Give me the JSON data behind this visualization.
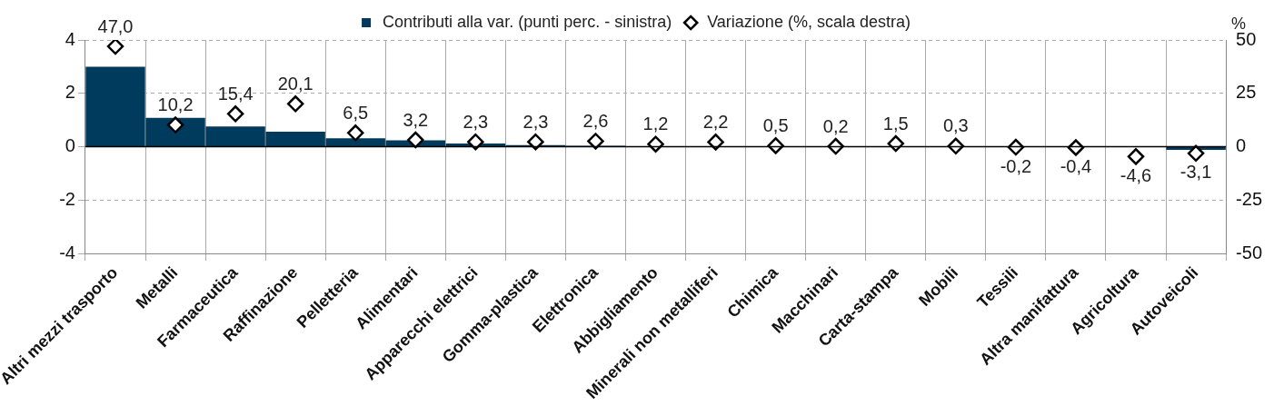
{
  "chart_data": {
    "type": "bar",
    "categories": [
      "Altri mezzi trasporto",
      "Metalli",
      "Farmaceutica",
      "Raffinazione",
      "Pelletteria",
      "Alimentari",
      "Apparecchi elettrici",
      "Gomma-plastica",
      "Elettronica",
      "Abbigliamento",
      "Minerali non metalliferi",
      "Chimica",
      "Macchinari",
      "Carta-stampa",
      "Mobili",
      "Tessili",
      "Altra manifattura",
      "Agricoltura",
      "Autoveicoli"
    ],
    "series": [
      {
        "name": "Contributi alla var. (punti perc. - sinistra)",
        "color": "#003a5c",
        "values": [
          3.0,
          1.08,
          0.76,
          0.56,
          0.32,
          0.24,
          0.12,
          0.06,
          0.04,
          0.02,
          0.02,
          0.01,
          0.0,
          0.01,
          0.0,
          0.0,
          0.0,
          null,
          -0.12
        ]
      },
      {
        "name": "Variazione (%, scala destra)",
        "type": "scatter",
        "axis": "y2",
        "color": "#000000",
        "marker": "diamond",
        "values": [
          47.0,
          10.2,
          15.4,
          20.1,
          6.5,
          3.2,
          2.3,
          2.3,
          2.6,
          1.2,
          2.2,
          0.5,
          0.2,
          1.5,
          0.3,
          -0.2,
          -0.4,
          -4.6,
          -3.1
        ],
        "value_labels": [
          "47,0",
          "10,2",
          "15,4",
          "20,1",
          "6,5",
          "3,2",
          "2,3",
          "2,3",
          "2,6",
          "1,2",
          "2,2",
          "0,5",
          "0,2",
          "1,5",
          "0,3",
          "-0,2",
          "-0,4",
          "-4,6",
          "-3,1"
        ]
      }
    ],
    "ylim": [
      -4,
      4
    ],
    "yticks": [
      -4,
      -2,
      0,
      2,
      4
    ],
    "y2lim": [
      -50,
      50
    ],
    "y2ticks": [
      -50,
      -25,
      0,
      25,
      50
    ],
    "y2label": "%",
    "grid": true,
    "legend": "top",
    "ref_lines": [
      {
        "axis": "y",
        "value": 0,
        "color": "#000000"
      }
    ]
  }
}
